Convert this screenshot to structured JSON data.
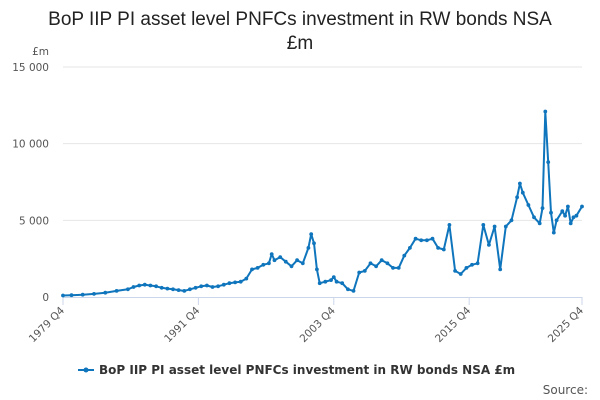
{
  "chart_data": {
    "type": "line",
    "title_lines": [
      "BoP IIP PI asset level PNFCs investment in RW bonds NSA",
      "£m"
    ],
    "ylabel": "£m",
    "ylim": [
      0,
      15000
    ],
    "yticks": [
      0,
      5000,
      10000,
      15000
    ],
    "ytick_labels": [
      "0",
      "5 000",
      "10 000",
      "15 000"
    ],
    "xlim": [
      1979.75,
      2025.75
    ],
    "xticks": [
      1979.75,
      1991.75,
      2003.75,
      2015.75,
      2025.75
    ],
    "xtick_labels": [
      "1979 Q4",
      "1991 Q4",
      "2003 Q4",
      "2015 Q4",
      "2025 Q4"
    ],
    "grid": true,
    "legend_position": "bottom",
    "series": [
      {
        "name": "BoP IIP PI asset level PNFCs investment in RW bonds NSA £m",
        "color": "#0f75bc",
        "points": [
          [
            1979.75,
            100
          ],
          [
            1980.5,
            120
          ],
          [
            1981.5,
            150
          ],
          [
            1982.5,
            200
          ],
          [
            1983.5,
            280
          ],
          [
            1984.5,
            400
          ],
          [
            1985.5,
            500
          ],
          [
            1986.0,
            650
          ],
          [
            1986.5,
            750
          ],
          [
            1987.0,
            800
          ],
          [
            1987.5,
            750
          ],
          [
            1988.0,
            700
          ],
          [
            1988.5,
            600
          ],
          [
            1989.0,
            550
          ],
          [
            1989.5,
            500
          ],
          [
            1990.0,
            450
          ],
          [
            1990.5,
            400
          ],
          [
            1991.0,
            500
          ],
          [
            1991.5,
            600
          ],
          [
            1992.0,
            700
          ],
          [
            1992.5,
            750
          ],
          [
            1993.0,
            650
          ],
          [
            1993.5,
            700
          ],
          [
            1994.0,
            800
          ],
          [
            1994.5,
            900
          ],
          [
            1995.0,
            950
          ],
          [
            1995.5,
            1000
          ],
          [
            1996.0,
            1200
          ],
          [
            1996.5,
            1800
          ],
          [
            1997.0,
            1900
          ],
          [
            1997.5,
            2100
          ],
          [
            1998.0,
            2200
          ],
          [
            1998.25,
            2800
          ],
          [
            1998.5,
            2400
          ],
          [
            1999.0,
            2600
          ],
          [
            1999.5,
            2300
          ],
          [
            2000.0,
            2000
          ],
          [
            2000.5,
            2400
          ],
          [
            2001.0,
            2200
          ],
          [
            2001.5,
            3200
          ],
          [
            2001.75,
            4100
          ],
          [
            2002.0,
            3500
          ],
          [
            2002.25,
            1800
          ],
          [
            2002.5,
            900
          ],
          [
            2003.0,
            1000
          ],
          [
            2003.5,
            1100
          ],
          [
            2003.75,
            1300
          ],
          [
            2004.0,
            1000
          ],
          [
            2004.5,
            900
          ],
          [
            2005.0,
            500
          ],
          [
            2005.5,
            400
          ],
          [
            2006.0,
            1600
          ],
          [
            2006.5,
            1700
          ],
          [
            2007.0,
            2200
          ],
          [
            2007.5,
            2000
          ],
          [
            2008.0,
            2400
          ],
          [
            2008.5,
            2200
          ],
          [
            2009.0,
            1900
          ],
          [
            2009.5,
            1900
          ],
          [
            2010.0,
            2700
          ],
          [
            2010.5,
            3200
          ],
          [
            2011.0,
            3800
          ],
          [
            2011.5,
            3700
          ],
          [
            2012.0,
            3700
          ],
          [
            2012.5,
            3800
          ],
          [
            2013.0,
            3200
          ],
          [
            2013.5,
            3100
          ],
          [
            2014.0,
            4700
          ],
          [
            2014.5,
            1700
          ],
          [
            2015.0,
            1500
          ],
          [
            2015.5,
            1900
          ],
          [
            2016.0,
            2100
          ],
          [
            2016.5,
            2200
          ],
          [
            2017.0,
            4700
          ],
          [
            2017.5,
            3400
          ],
          [
            2018.0,
            4600
          ],
          [
            2018.5,
            1800
          ],
          [
            2019.0,
            4600
          ],
          [
            2019.5,
            5000
          ],
          [
            2020.0,
            6500
          ],
          [
            2020.25,
            7400
          ],
          [
            2020.5,
            6800
          ],
          [
            2021.0,
            6000
          ],
          [
            2021.5,
            5200
          ],
          [
            2022.0,
            4800
          ],
          [
            2022.25,
            5800
          ],
          [
            2022.5,
            12100
          ],
          [
            2022.75,
            8800
          ],
          [
            2023.0,
            5500
          ],
          [
            2023.25,
            4200
          ],
          [
            2023.5,
            5000
          ],
          [
            2024.0,
            5600
          ],
          [
            2024.25,
            5300
          ],
          [
            2024.5,
            5900
          ],
          [
            2024.75,
            4800
          ],
          [
            2025.0,
            5200
          ],
          [
            2025.25,
            5300
          ],
          [
            2025.75,
            5900
          ]
        ]
      }
    ],
    "source": "Source:"
  }
}
